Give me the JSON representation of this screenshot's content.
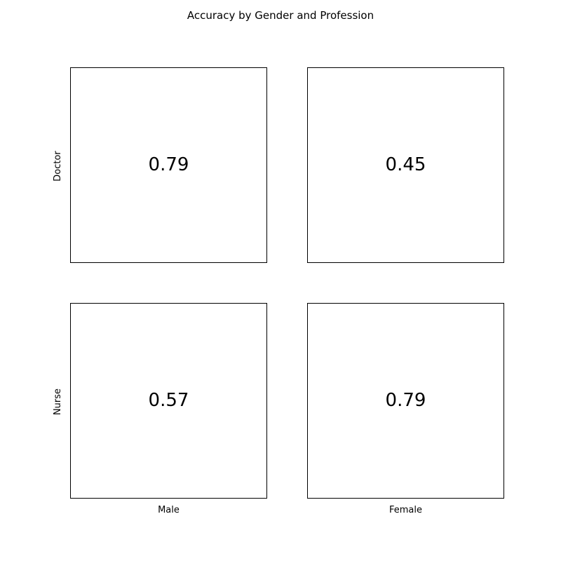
{
  "chart_data": {
    "type": "table",
    "title": "Accuracy by Gender and Profession",
    "columns": [
      "Male",
      "Female"
    ],
    "rows": [
      "Doctor",
      "Nurse"
    ],
    "values": [
      [
        0.79,
        0.45
      ],
      [
        0.57,
        0.79
      ]
    ],
    "cells": {
      "doctor_male": "0.79",
      "doctor_female": "0.45",
      "nurse_male": "0.57",
      "nurse_female": "0.79"
    },
    "grid": false
  }
}
